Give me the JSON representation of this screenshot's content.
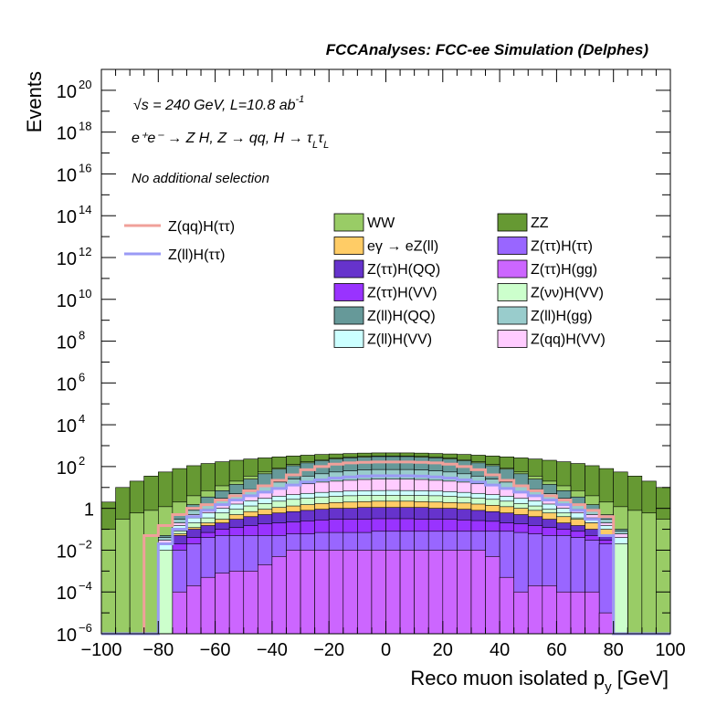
{
  "header": "FCCAnalyses: FCC-ee Simulation (Delphes)",
  "annotations": {
    "energy": "√s = 240 GeV, L=10.8 ab",
    "energy_exp": "-1",
    "process": "e⁺e⁻ → Z H, Z → qq, H → τ",
    "process_sub1": "L",
    "process_tau2": "τ",
    "process_sub2": "L",
    "selection": "No additional selection"
  },
  "chart_data": {
    "type": "area",
    "xlabel": "Reco muon isolated p",
    "xlabel_sub": "y",
    "xlabel_unit": "[GeV]",
    "ylabel": "Events",
    "xlim": [
      -100,
      100
    ],
    "ylim": [
      1e-06,
      1e+21
    ],
    "yscale": "log",
    "x_ticks": [
      "−100",
      "−80",
      "−60",
      "−40",
      "−20",
      "0",
      "20",
      "40",
      "60",
      "80",
      "100"
    ],
    "y_ticks": [
      {
        "base": "10",
        "exp": "−6"
      },
      {
        "base": "10",
        "exp": "−4"
      },
      {
        "base": "10",
        "exp": "−2"
      },
      {
        "base": "1",
        "exp": ""
      },
      {
        "base": "10",
        "exp": "2"
      },
      {
        "base": "10",
        "exp": "4"
      },
      {
        "base": "10",
        "exp": "6"
      },
      {
        "base": "10",
        "exp": "8"
      },
      {
        "base": "10",
        "exp": "10"
      },
      {
        "base": "10",
        "exp": "12"
      },
      {
        "base": "10",
        "exp": "14"
      },
      {
        "base": "10",
        "exp": "16"
      },
      {
        "base": "10",
        "exp": "18"
      },
      {
        "base": "10",
        "exp": "20"
      }
    ],
    "legend_lines": [
      {
        "name": "Z(qq)H(ττ)",
        "color": "#f0a09a"
      },
      {
        "name": "Z(ll)H(ττ)",
        "color": "#9a9af5"
      }
    ],
    "legend_fills": [
      {
        "name": "WW",
        "color": "#99cc66"
      },
      {
        "name": "ZZ",
        "color": "#669933"
      },
      {
        "name": "eγ → eZ(ll)",
        "color": "#ffcc66"
      },
      {
        "name": "Z(ττ)H(ττ)",
        "color": "#9966ff"
      },
      {
        "name": "Z(ττ)H(QQ)",
        "color": "#6633cc"
      },
      {
        "name": "Z(ττ)H(gg)",
        "color": "#cc66ff"
      },
      {
        "name": "Z(ττ)H(VV)",
        "color": "#9933ff"
      },
      {
        "name": "Z(νν)H(VV)",
        "color": "#ccffcc"
      },
      {
        "name": "Z(ll)H(QQ)",
        "color": "#669999"
      },
      {
        "name": "Z(ll)H(gg)",
        "color": "#99cccc"
      },
      {
        "name": "Z(ll)H(VV)",
        "color": "#ccffff"
      },
      {
        "name": "Z(qq)H(VV)",
        "color": "#ffccff"
      }
    ],
    "bin_edges": [
      -100,
      -95,
      -90,
      -85,
      -80,
      -75,
      -70,
      -65,
      -60,
      -55,
      -50,
      -45,
      -40,
      -35,
      -30,
      -25,
      -20,
      -15,
      -10,
      -5,
      0,
      5,
      10,
      15,
      20,
      25,
      30,
      35,
      40,
      45,
      50,
      55,
      60,
      65,
      70,
      75,
      80,
      85,
      90,
      95,
      100
    ],
    "stack_levels": [
      {
        "name": "Z(ττ)H(gg)",
        "values": [
          0,
          0,
          0,
          0,
          0,
          0.0001,
          0.0002,
          0.0005,
          0.0008,
          0.001,
          0.001,
          0.002,
          0.005,
          0.01,
          0.01,
          0.01,
          0.01,
          0.01,
          0.01,
          0.01,
          0.01,
          0.01,
          0.01,
          0.01,
          0.01,
          0.01,
          0.01,
          0.005,
          0.0005,
          0.0001,
          0.0002,
          0.0002,
          0.0001,
          0.0001,
          0.0001,
          1e-05,
          0,
          0,
          0,
          0
        ]
      },
      {
        "name": "Z(ττ)H(ττ)",
        "values": [
          0,
          0,
          0,
          0,
          0,
          0.01,
          0.02,
          0.04,
          0.05,
          0.05,
          0.05,
          0.05,
          0.05,
          0.06,
          0.06,
          0.07,
          0.07,
          0.07,
          0.07,
          0.08,
          0.08,
          0.08,
          0.08,
          0.08,
          0.08,
          0.08,
          0.08,
          0.08,
          0.08,
          0.07,
          0.06,
          0.05,
          0.05,
          0.04,
          0.03,
          0.02,
          0,
          0,
          0,
          0
        ]
      },
      {
        "name": "Z(ττ)H(VV)",
        "values": [
          0,
          0,
          0,
          0,
          0,
          0.02,
          0.04,
          0.07,
          0.1,
          0.12,
          0.15,
          0.18,
          0.2,
          0.22,
          0.25,
          0.28,
          0.3,
          0.3,
          0.3,
          0.32,
          0.32,
          0.32,
          0.3,
          0.3,
          0.3,
          0.28,
          0.26,
          0.24,
          0.2,
          0.18,
          0.15,
          0.12,
          0.1,
          0.08,
          0.05,
          0.03,
          0,
          0,
          0,
          0
        ]
      },
      {
        "name": "Z(ττ)H(QQ)",
        "values": [
          0,
          0,
          0,
          0,
          0,
          0.05,
          0.1,
          0.15,
          0.2,
          0.3,
          0.4,
          0.5,
          0.6,
          0.7,
          0.8,
          0.9,
          1,
          1,
          1.1,
          1.1,
          1.1,
          1.1,
          1.1,
          1,
          1,
          0.9,
          0.8,
          0.7,
          0.6,
          0.5,
          0.4,
          0.3,
          0.2,
          0.15,
          0.1,
          0.05,
          0,
          0,
          0,
          0
        ]
      },
      {
        "name": "eγ → eZ(ll)",
        "values": [
          0,
          0,
          0,
          0,
          0,
          0.06,
          0.12,
          0.2,
          0.3,
          0.5,
          0.7,
          0.9,
          1.1,
          1.3,
          1.5,
          1.7,
          1.9,
          2,
          2.1,
          2.2,
          2.2,
          2.2,
          2.1,
          2,
          1.9,
          1.8,
          1.6,
          1.4,
          1.2,
          1,
          0.8,
          0.6,
          0.4,
          0.3,
          0.2,
          0.1,
          0,
          0,
          0,
          0
        ]
      },
      {
        "name": "Z(νν)H(VV)",
        "values": [
          0,
          0,
          0,
          0,
          0.01,
          0.08,
          0.2,
          0.35,
          0.6,
          0.9,
          1.3,
          1.7,
          2.2,
          2.7,
          3.1,
          3.5,
          3.8,
          4,
          4.1,
          4.2,
          4.2,
          4.2,
          4.1,
          4,
          3.8,
          3.5,
          3.1,
          2.7,
          2.2,
          1.7,
          1.3,
          0.9,
          0.6,
          0.35,
          0.2,
          0.08,
          0.02,
          0,
          0,
          0
        ]
      },
      {
        "name": "Z(ll)H(VV)",
        "values": [
          0,
          0,
          0,
          0,
          0.02,
          0.15,
          0.35,
          0.6,
          1,
          1.6,
          2.3,
          3,
          3.8,
          4.5,
          5.2,
          5.8,
          6.3,
          6.7,
          7,
          7.1,
          7.2,
          7.1,
          7,
          6.7,
          6.3,
          5.8,
          5.2,
          4.5,
          3.8,
          3,
          2.3,
          1.6,
          1,
          0.6,
          0.35,
          0.15,
          0.04,
          0,
          0,
          0
        ]
      },
      {
        "name": "Z(qq)H(VV)",
        "values": [
          0,
          0,
          0,
          0,
          0.03,
          0.2,
          0.5,
          0.9,
          1.5,
          2.5,
          4,
          6,
          9,
          12,
          15,
          18,
          20,
          22,
          24,
          25,
          25,
          25,
          24,
          22,
          20,
          18,
          15,
          12,
          9,
          6,
          4,
          2.5,
          1.5,
          0.9,
          0.5,
          0.2,
          0.06,
          0,
          0,
          0
        ]
      },
      {
        "name": "Z(ll)H(gg)",
        "values": [
          0,
          0,
          0,
          0,
          0.04,
          0.3,
          0.8,
          1.5,
          3,
          5,
          8,
          12,
          18,
          25,
          35,
          45,
          55,
          62,
          68,
          72,
          72,
          72,
          68,
          62,
          55,
          45,
          35,
          25,
          18,
          12,
          8,
          5,
          3,
          1.5,
          0.8,
          0.3,
          0.08,
          0,
          0,
          0
        ]
      },
      {
        "name": "Z(ll)H(QQ)",
        "values": [
          0,
          0,
          0,
          0,
          0.05,
          0.5,
          1.5,
          3.5,
          7,
          14,
          25,
          45,
          75,
          110,
          150,
          190,
          230,
          260,
          280,
          300,
          300,
          300,
          280,
          260,
          230,
          190,
          150,
          110,
          75,
          45,
          25,
          14,
          7,
          3.5,
          1.5,
          0.5,
          0.1,
          0,
          0,
          0
        ]
      },
      {
        "name": "WW",
        "values": [
          0.1,
          0.3,
          0.6,
          0.8,
          1.2,
          2,
          4,
          7,
          12,
          20,
          35,
          55,
          85,
          125,
          170,
          215,
          255,
          285,
          305,
          320,
          320,
          320,
          305,
          285,
          255,
          215,
          170,
          125,
          85,
          55,
          35,
          20,
          12,
          7,
          4,
          2,
          1.2,
          0.8,
          0.6,
          0.3
        ]
      },
      {
        "name": "ZZ",
        "values": [
          2,
          10,
          20,
          35,
          55,
          80,
          110,
          140,
          170,
          200,
          230,
          260,
          290,
          320,
          350,
          380,
          400,
          420,
          440,
          450,
          450,
          450,
          440,
          420,
          400,
          380,
          350,
          320,
          290,
          260,
          230,
          200,
          170,
          140,
          110,
          80,
          55,
          35,
          20,
          10
        ]
      }
    ],
    "line_series": [
      {
        "name": "Z(qq)H(ττ)",
        "values": [
          0,
          0,
          0,
          0.05,
          0.15,
          0.5,
          1,
          1.5,
          2.5,
          4,
          7,
          12,
          22,
          40,
          70,
          100,
          130,
          150,
          160,
          165,
          165,
          165,
          160,
          150,
          130,
          100,
          70,
          40,
          22,
          12,
          7,
          4,
          2.5,
          1.5,
          0.8,
          0.4,
          0,
          0,
          0,
          0
        ]
      },
      {
        "name": "Z(ll)H(ττ)",
        "values": [
          0,
          0,
          0,
          0,
          0.02,
          0.1,
          0.4,
          0.8,
          1.5,
          2.5,
          4,
          6,
          9,
          13,
          18,
          23,
          28,
          32,
          35,
          36,
          36,
          36,
          35,
          32,
          28,
          23,
          18,
          13,
          9,
          6,
          4,
          2.5,
          1.5,
          0.8,
          0.3,
          0.05,
          0,
          0,
          0,
          0
        ]
      }
    ],
    "grid": false,
    "legend_placement": "upper"
  }
}
